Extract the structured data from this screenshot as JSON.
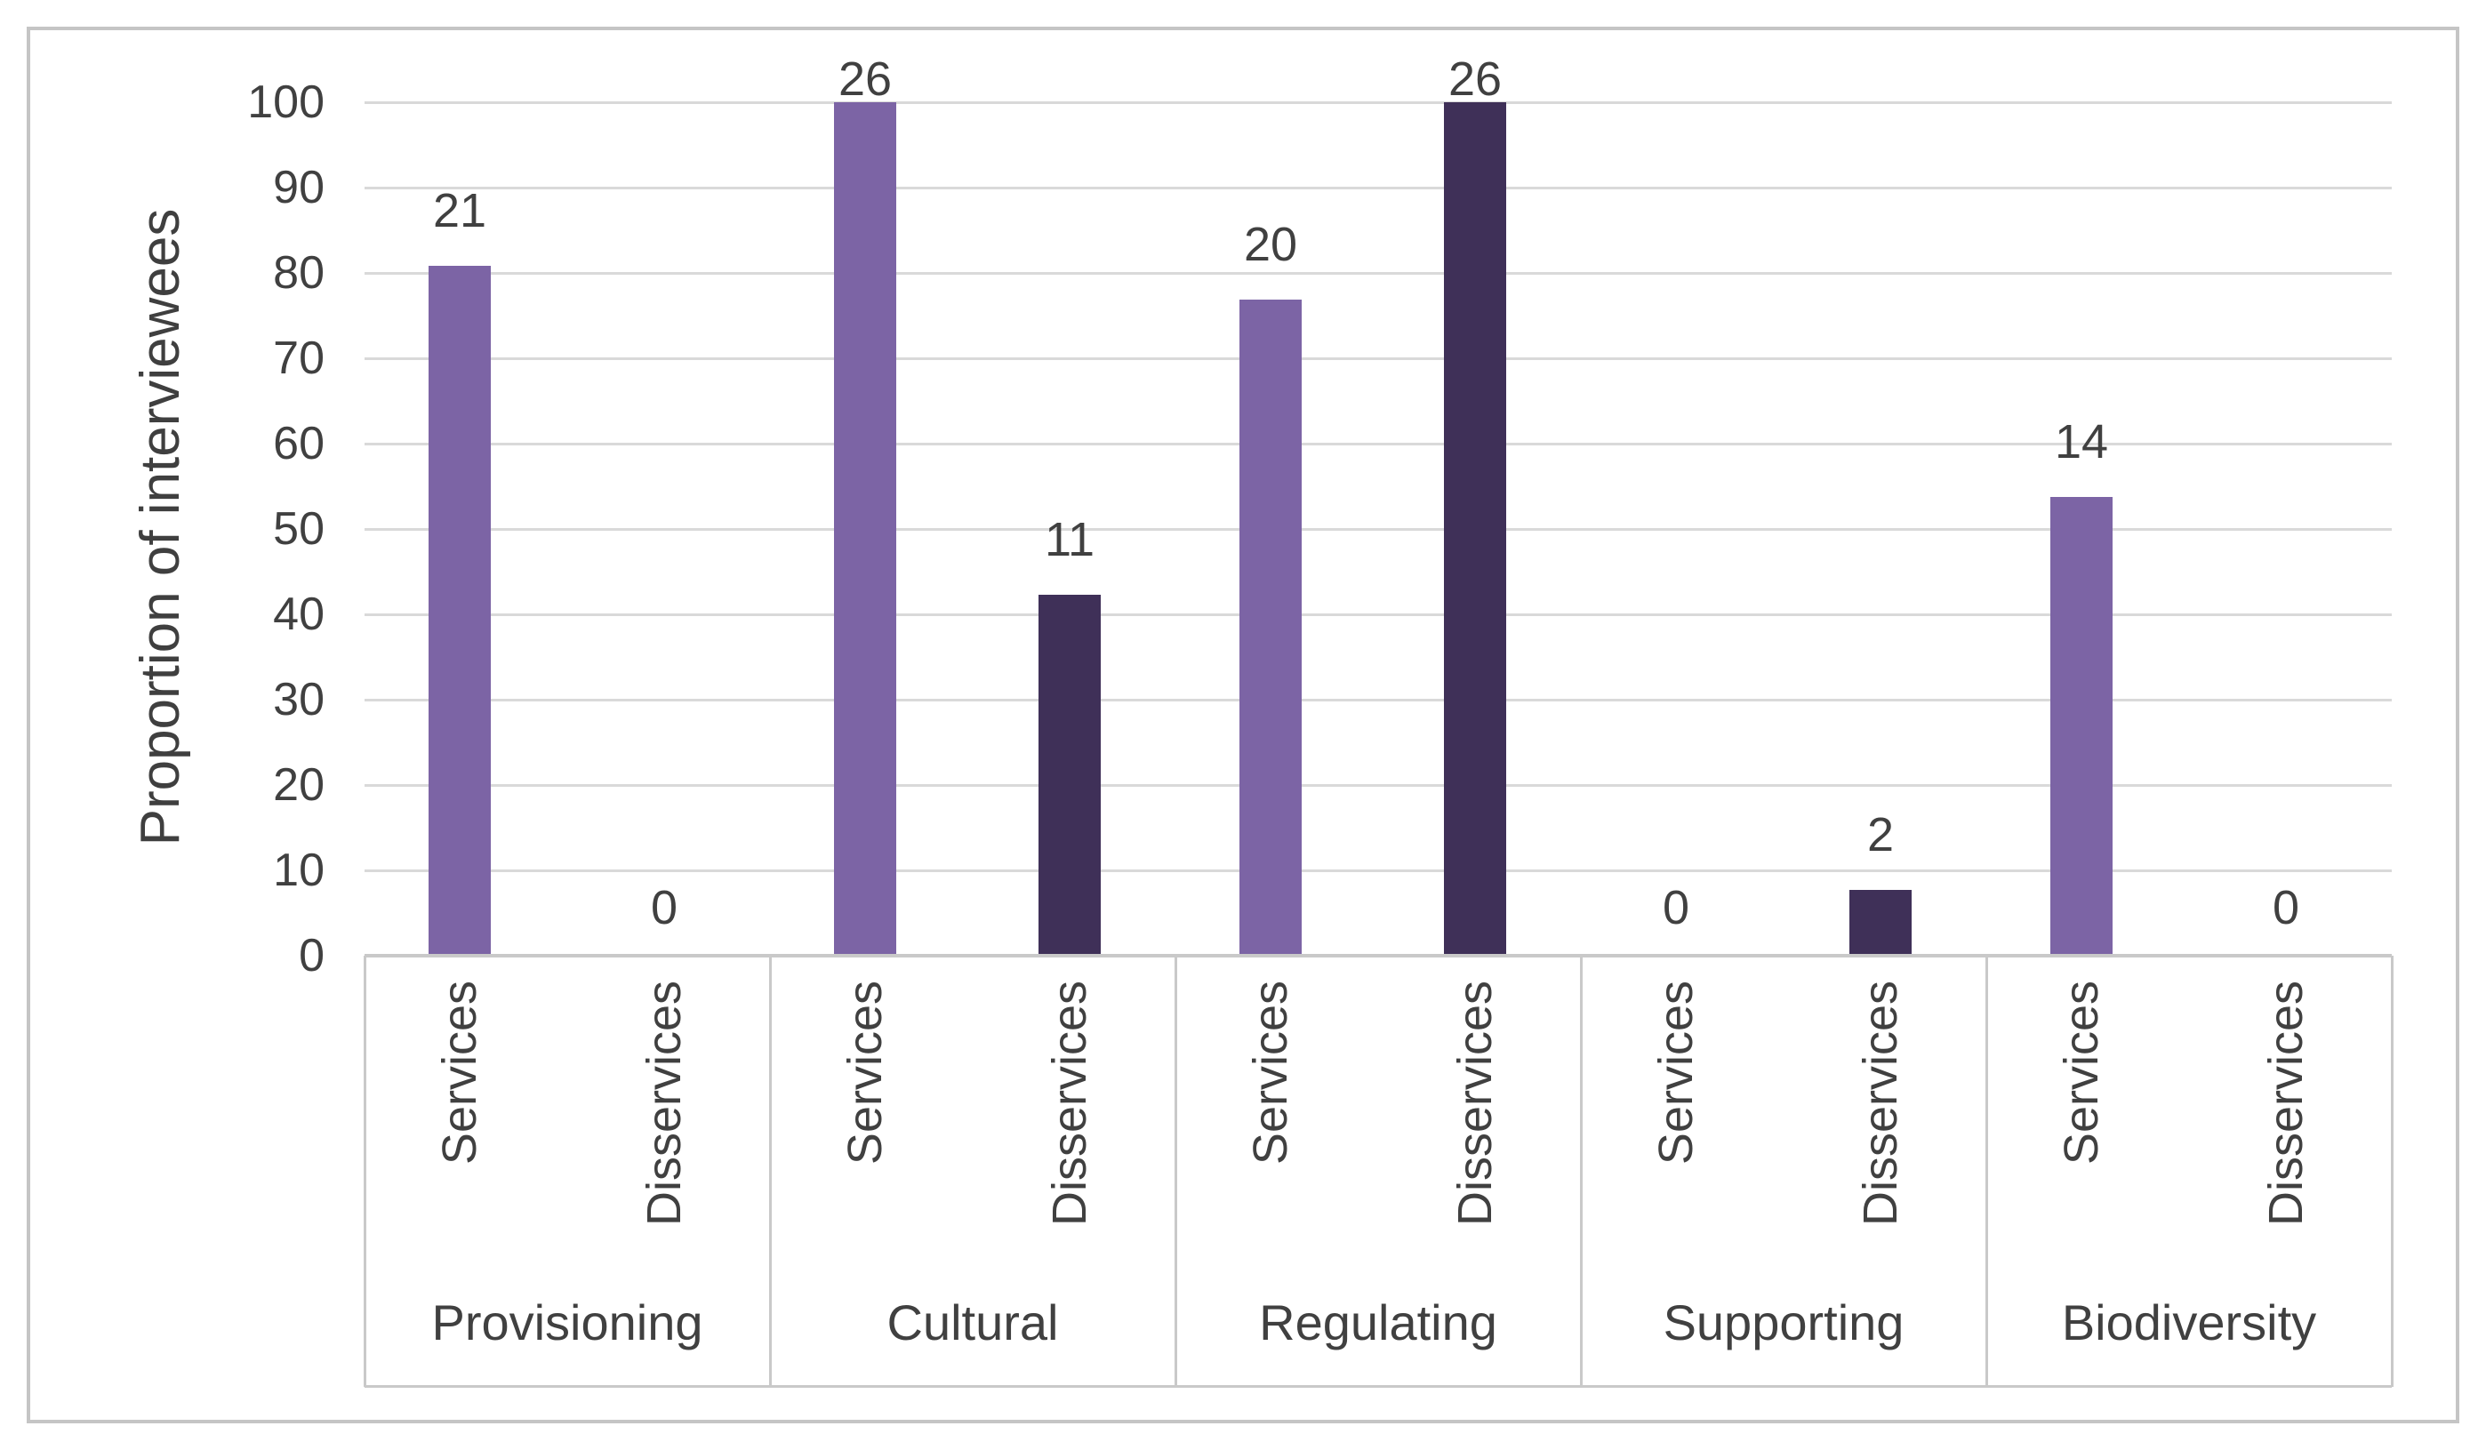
{
  "chart_data": {
    "type": "bar",
    "title": "",
    "ylabel": "Proportion of interviewees",
    "xlabel": "",
    "ylim": [
      0,
      100
    ],
    "yticks": [
      0,
      10,
      20,
      30,
      40,
      50,
      60,
      70,
      80,
      90,
      100
    ],
    "grid": true,
    "legend_position": "none",
    "categories": [
      "Provisioning",
      "Cultural",
      "Regulating",
      "Supporting",
      "Biodiversity"
    ],
    "slot_labels": [
      "Services",
      "Disservices"
    ],
    "series": [
      {
        "name": "Services",
        "color": "#7c64a5",
        "bar_heights_pct": [
          80.8,
          100,
          76.9,
          0,
          53.8
        ],
        "data_labels": [
          21,
          26,
          20,
          0,
          14
        ]
      },
      {
        "name": "Disservices",
        "color": "#3f3058",
        "bar_heights_pct": [
          0,
          42.3,
          100,
          7.7,
          0
        ],
        "data_labels": [
          0,
          11,
          26,
          2,
          0
        ]
      }
    ],
    "colors": {
      "gridline": "#d9d9d9",
      "axis_line": "#c9c9c9",
      "category_border": "#c9c9c9",
      "text": "#404040",
      "frame_border": "#c5c5c5",
      "background": "#ffffff"
    }
  }
}
